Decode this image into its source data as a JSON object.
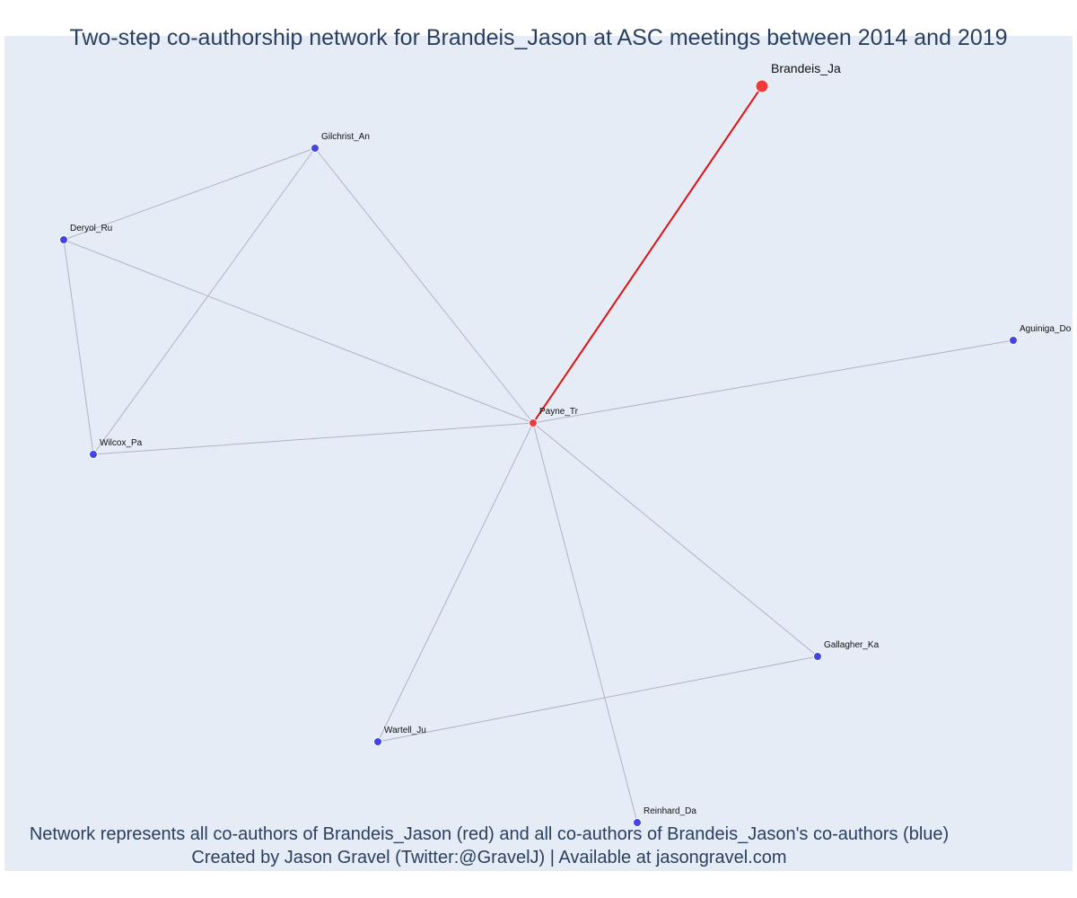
{
  "title": "Two-step co-authorship network for Brandeis_Jason at ASC meetings between 2014 and 2019",
  "captions": {
    "line1": "Network represents all co-authors of Brandeis_Jason (red) and all co-authors of Brandeis_Jason's co-authors (blue)",
    "line2": "Created by Jason Gravel (Twitter:@GravelJ) | Available at jasongravel.com"
  },
  "colors": {
    "background": "#e5ecf6",
    "red_node": "#ef3a3a",
    "blue_node": "#4245e6",
    "red_edge": "#e01010",
    "gray_edge": "#b0b3c6",
    "text": "#2a3f5f"
  },
  "nodes": [
    {
      "id": "Brandeis_Ja",
      "label": "Brandeis_Ja",
      "group": "focal"
    },
    {
      "id": "Payne_Tr",
      "label": "Payne_Tr",
      "group": "coauthor"
    },
    {
      "id": "Gilchrist_An",
      "label": "Gilchrist_An",
      "group": "second"
    },
    {
      "id": "Deryol_Ru",
      "label": "Deryol_Ru",
      "group": "second"
    },
    {
      "id": "Wilcox_Pa",
      "label": "Wilcox_Pa",
      "group": "second"
    },
    {
      "id": "Aguiniga_Do",
      "label": "Aguiniga_Do",
      "group": "second"
    },
    {
      "id": "Gallagher_Ka",
      "label": "Gallagher_Ka",
      "group": "second"
    },
    {
      "id": "Wartell_Ju",
      "label": "Wartell_Ju",
      "group": "second"
    },
    {
      "id": "Reinhard_Da",
      "label": "Reinhard_Da",
      "group": "second"
    }
  ],
  "edges": [
    {
      "source": "Brandeis_Ja",
      "target": "Payne_Tr",
      "type": "focal"
    },
    {
      "source": "Payne_Tr",
      "target": "Gilchrist_An",
      "type": "other"
    },
    {
      "source": "Payne_Tr",
      "target": "Deryol_Ru",
      "type": "other"
    },
    {
      "source": "Payne_Tr",
      "target": "Wilcox_Pa",
      "type": "other"
    },
    {
      "source": "Payne_Tr",
      "target": "Aguiniga_Do",
      "type": "other"
    },
    {
      "source": "Payne_Tr",
      "target": "Gallagher_Ka",
      "type": "other"
    },
    {
      "source": "Payne_Tr",
      "target": "Wartell_Ju",
      "type": "other"
    },
    {
      "source": "Payne_Tr",
      "target": "Reinhard_Da",
      "type": "other"
    },
    {
      "source": "Gilchrist_An",
      "target": "Deryol_Ru",
      "type": "other"
    },
    {
      "source": "Gilchrist_An",
      "target": "Wilcox_Pa",
      "type": "other"
    },
    {
      "source": "Deryol_Ru",
      "target": "Wilcox_Pa",
      "type": "other"
    },
    {
      "source": "Wartell_Ju",
      "target": "Gallagher_Ka",
      "type": "other"
    }
  ]
}
